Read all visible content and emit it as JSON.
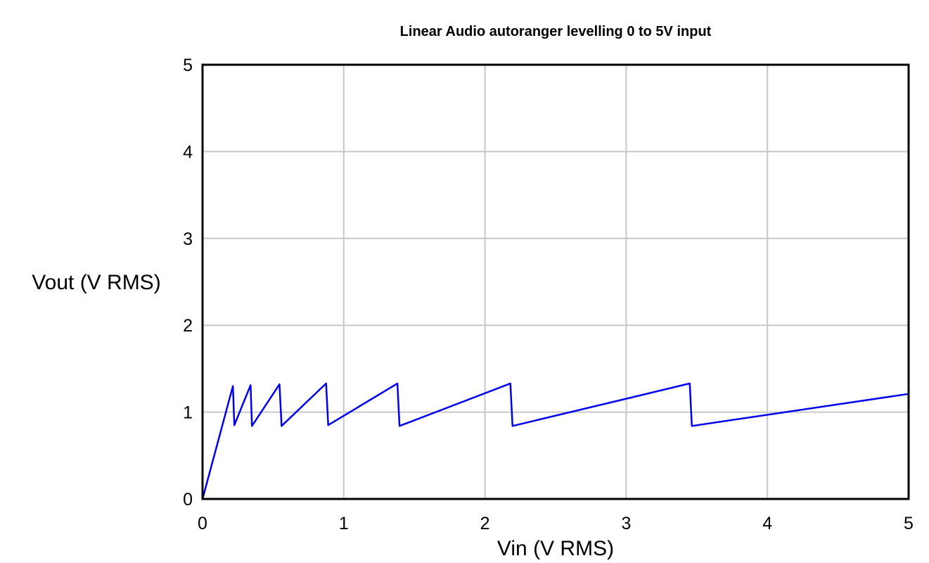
{
  "chart_data": {
    "type": "line",
    "title": "Linear Audio autoranger levelling 0 to 5V input",
    "xlabel": "Vin (V RMS)",
    "ylabel": "Vout (V RMS)",
    "xlim": [
      0,
      5
    ],
    "ylim": [
      0,
      5
    ],
    "xticks": [
      "0",
      "1",
      "2",
      "3",
      "4",
      "5"
    ],
    "yticks": [
      "0",
      "1",
      "2",
      "3",
      "4",
      "5"
    ],
    "grid": true,
    "line_color": "#0000ee",
    "series": [
      {
        "x": [
          0,
          0.215,
          0.225,
          0.34,
          0.35,
          0.545,
          0.56,
          0.875,
          0.89,
          1.38,
          1.395,
          2.18,
          2.195,
          3.45,
          3.465,
          5.0
        ],
        "y": [
          0,
          1.3,
          0.85,
          1.31,
          0.84,
          1.32,
          0.84,
          1.33,
          0.85,
          1.33,
          0.84,
          1.33,
          0.84,
          1.33,
          0.84,
          1.21
        ]
      }
    ]
  }
}
